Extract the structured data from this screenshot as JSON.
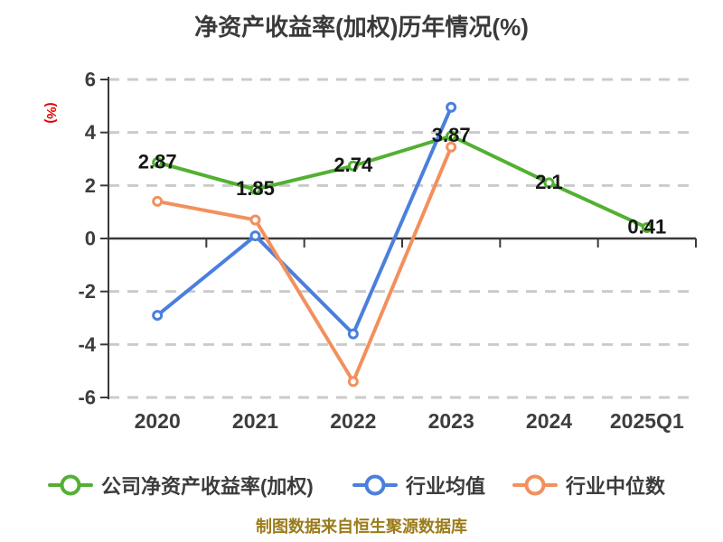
{
  "footer": "制图数据来自恒生聚源数据库",
  "colors": {
    "company": "#52b032",
    "industry_mean": "#4b7fdd",
    "industry_median": "#f2905d",
    "grid": "#cbcbcb",
    "axis": "#3a3a3a",
    "tick_label": "#3d3d3d",
    "data_label": "#161616",
    "unit_label": "#e60000",
    "footer_text": "#9a7c1b",
    "background": "#ffffff"
  },
  "chart_data": {
    "type": "line",
    "title": "净资产收益率(加权)历年情况(%)",
    "ylabel": "(%)",
    "xlabel": "",
    "categories": [
      "2020",
      "2021",
      "2022",
      "2023",
      "2024",
      "2025Q1"
    ],
    "y_ticks": [
      6,
      4,
      2,
      0,
      -2,
      -4,
      -6
    ],
    "ylim": [
      -6,
      6
    ],
    "grid": "horizontal-dashed",
    "legend_position": "bottom",
    "series": [
      {
        "name": "公司净资产收益率(加权)",
        "color": "#52b032",
        "values": [
          2.87,
          1.85,
          2.74,
          3.87,
          2.1,
          0.41
        ],
        "labels": [
          "2.87",
          "1.85",
          "2.74",
          "3.87",
          "2.1",
          "0.41"
        ]
      },
      {
        "name": "行业均值",
        "color": "#4b7fdd",
        "values": [
          -2.9,
          0.1,
          -3.6,
          4.95,
          null,
          null
        ]
      },
      {
        "name": "行业中位数",
        "color": "#f2905d",
        "values": [
          1.4,
          0.7,
          -5.4,
          3.45,
          null,
          null
        ]
      }
    ]
  }
}
